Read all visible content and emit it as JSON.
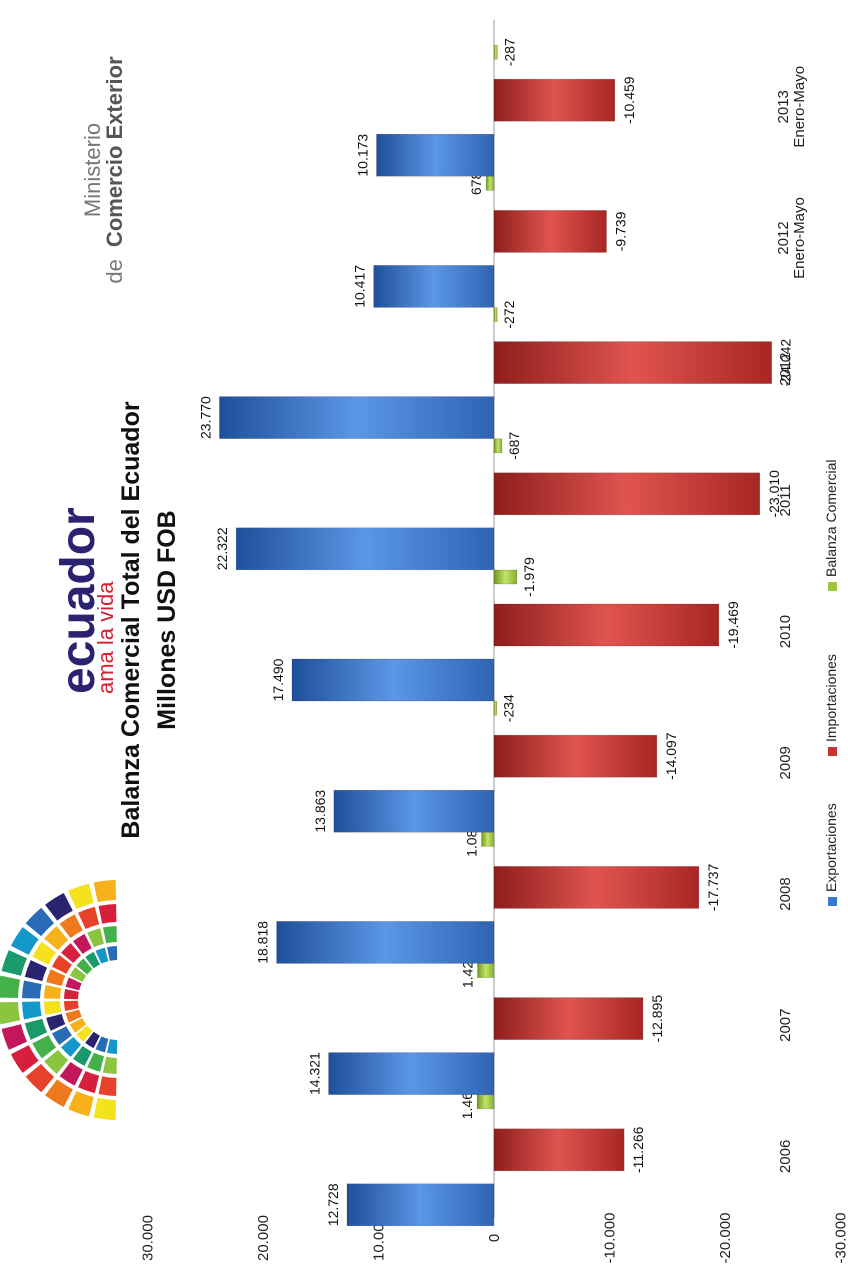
{
  "brand": {
    "logo_name": "ecuador",
    "logo_tagline": "ama la vida"
  },
  "ministry": {
    "line1": "Ministerio",
    "line2_prefix": "de",
    "line2_strong": "Comercio Exterior"
  },
  "colors": {
    "exportaciones": "#3a78d0",
    "importaciones": "#c8332f",
    "balanza": "#9cc63c",
    "brand_text": "#2b2270",
    "tagline": "#d6202f"
  },
  "chart_data": {
    "type": "bar",
    "title": "Balanza Comercial Total del Ecuador",
    "subtitle": "Millones USD FOB",
    "orientation": "rotated-90-cw",
    "categories": [
      "2006",
      "2007",
      "2008",
      "2009",
      "2010",
      "2011",
      "2012",
      "2012 Enero-Mayo",
      "2013 Enero-Mayo"
    ],
    "category_lines": [
      [
        "2006"
      ],
      [
        "2007"
      ],
      [
        "2008"
      ],
      [
        "2009"
      ],
      [
        "2010"
      ],
      [
        "2011"
      ],
      [
        "2012"
      ],
      [
        "2012",
        "Enero-Mayo"
      ],
      [
        "2013",
        "Enero-Mayo"
      ]
    ],
    "series": [
      {
        "name": "Exportaciones",
        "values": [
          12728,
          14321,
          18818,
          13863,
          17490,
          22322,
          23770,
          10417,
          10173
        ],
        "labels": [
          "12.728",
          "14.321",
          "18.818",
          "13.863",
          "17.490",
          "22.322",
          "23.770",
          "10.417",
          "10.173"
        ]
      },
      {
        "name": "Importaciones",
        "values": [
          -11266,
          -12895,
          -17737,
          -14097,
          -19469,
          -23010,
          -24042,
          -9739,
          -10459
        ],
        "labels": [
          "-11.266",
          "-12.895",
          "-17.737",
          "-14.097",
          "-19.469",
          "-23.010",
          "-24.042",
          "-9.739",
          "-10.459"
        ]
      },
      {
        "name": "Balanza Comercial",
        "values": [
          1462,
          1426,
          1081,
          -234,
          -1979,
          -687,
          -272,
          678,
          -287
        ],
        "labels": [
          "1.462",
          "1.426",
          "1.081",
          "-234",
          "-1.979",
          "-687",
          "-272",
          "678",
          "-287"
        ]
      }
    ],
    "ylim": [
      -30000,
      30000
    ],
    "ticks": [
      30000,
      20000,
      10000,
      0,
      -10000,
      -20000,
      -30000
    ],
    "tick_labels": [
      "30.000",
      "20.000",
      "10.000",
      "0",
      "-10.000",
      "-20.000",
      "-30.000"
    ],
    "grid": false,
    "legend": "bottom"
  }
}
